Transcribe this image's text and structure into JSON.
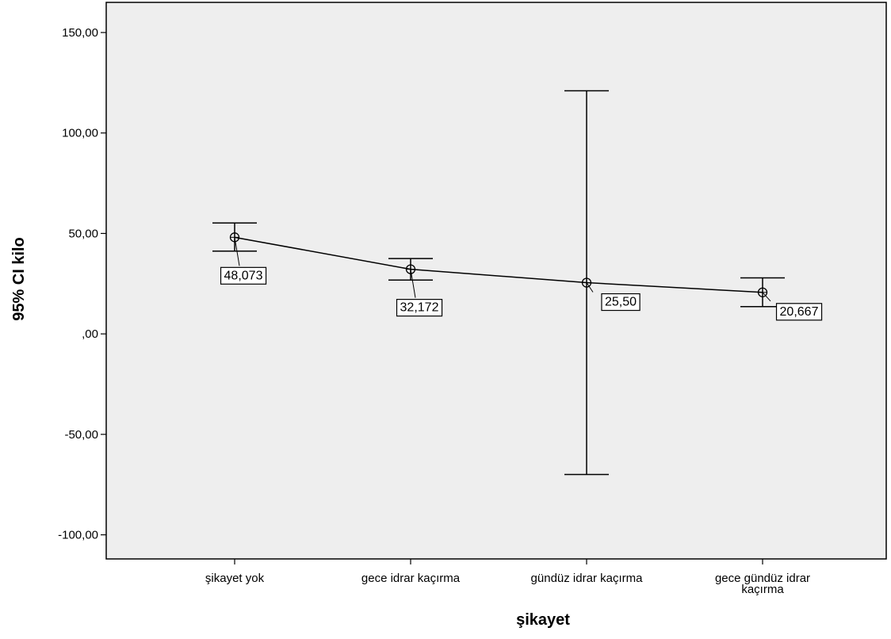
{
  "chart_data": {
    "type": "line",
    "subtype": "error-bar",
    "xlabel": "şikayet",
    "ylabel": "95% CI kilo",
    "ylim": [
      -112,
      165
    ],
    "yticks": [
      -100,
      -50,
      0,
      50,
      100,
      150
    ],
    "ytick_labels": [
      "-100,00",
      "-50,00",
      ",00",
      "50,00",
      "100,00",
      "150,00"
    ],
    "grid": false,
    "background": "#eeeeee",
    "line_color": "#000000",
    "categories": [
      [
        "şikayet yok"
      ],
      [
        "gece idrar kaçırma"
      ],
      [
        "gündüz idrar kaçırma"
      ],
      [
        "gece gündüz idrar",
        "kaçırma"
      ]
    ],
    "means": [
      48.073,
      32.172,
      25.5,
      20.667
    ],
    "lower": [
      41.2,
      26.8,
      -70.0,
      13.6
    ],
    "upper": [
      55.2,
      37.5,
      121.0,
      27.9
    ],
    "data_labels": [
      "48,073",
      "32,172",
      "25,50",
      "20,667"
    ],
    "label_placement": [
      "below",
      "below",
      "right",
      "below-right"
    ]
  }
}
